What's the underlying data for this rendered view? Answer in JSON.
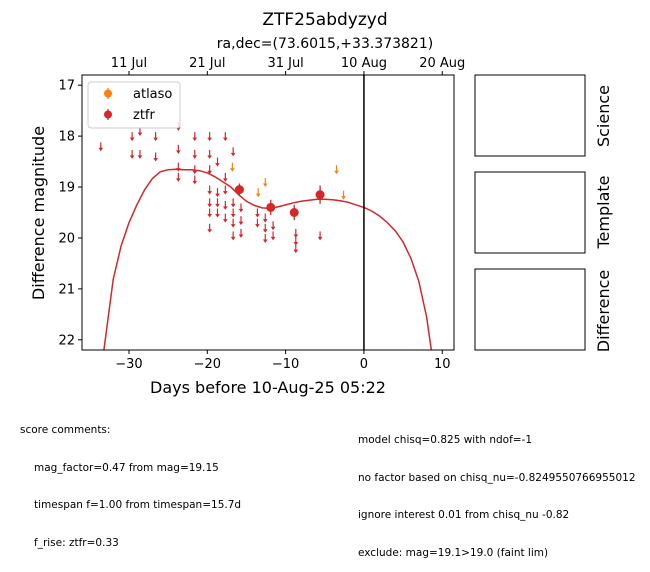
{
  "chart_data": {
    "type": "scatter",
    "title": "ZTF25abdyzyd",
    "subtitle": "ra,dec=(73.6015,+33.373821)",
    "xlabel": "Days before 10-Aug-25 05:22",
    "ylabel": "Difference magnitude",
    "xlim": [
      -36,
      11.5
    ],
    "ylim": [
      22.2,
      16.8
    ],
    "x_ticks": [
      -30,
      -20,
      -10,
      0,
      10
    ],
    "y_ticks": [
      17,
      18,
      19,
      20,
      21,
      22
    ],
    "top_axis_ticks": [
      {
        "x": -30,
        "label": "11 Jul"
      },
      {
        "x": -20,
        "label": "21 Jul"
      },
      {
        "x": -10,
        "label": "31 Jul"
      },
      {
        "x": 0,
        "label": "10 Aug"
      },
      {
        "x": 10,
        "label": "20 Aug"
      }
    ],
    "vline_x": 0,
    "grid": false,
    "legend_placement": "upper-left",
    "series": [
      {
        "name": "atlaso",
        "color": "#ff7f0e",
        "detections": [],
        "upper_limits": [
          [
            -16.8,
            18.6
          ],
          [
            -13.5,
            19.1
          ],
          [
            -12.6,
            18.9
          ],
          [
            -3.5,
            18.65
          ],
          [
            -2.6,
            19.15
          ]
        ]
      },
      {
        "name": "ztfr",
        "color": "#d62728",
        "detections": [
          {
            "x": -15.9,
            "y": 19.05,
            "err": 0.12
          },
          {
            "x": -11.9,
            "y": 19.4,
            "err": 0.15
          },
          {
            "x": -8.9,
            "y": 19.5,
            "err": 0.15
          },
          {
            "x": -5.6,
            "y": 19.15,
            "err": 0.18
          }
        ],
        "upper_limits": [
          [
            -33.6,
            18.2
          ],
          [
            -29.6,
            18.0
          ],
          [
            -29.6,
            18.35
          ],
          [
            -28.6,
            17.9
          ],
          [
            -28.6,
            18.35
          ],
          [
            -26.6,
            18.0
          ],
          [
            -26.6,
            18.4
          ],
          [
            -23.7,
            17.8
          ],
          [
            -23.7,
            18.25
          ],
          [
            -23.7,
            18.6
          ],
          [
            -23.7,
            18.8
          ],
          [
            -21.6,
            18.0
          ],
          [
            -21.6,
            18.35
          ],
          [
            -21.6,
            18.65
          ],
          [
            -21.6,
            18.85
          ],
          [
            -19.7,
            18.0
          ],
          [
            -19.7,
            18.35
          ],
          [
            -19.7,
            18.65
          ],
          [
            -19.7,
            19.05
          ],
          [
            -19.7,
            19.3
          ],
          [
            -19.7,
            19.5
          ],
          [
            -19.7,
            19.8
          ],
          [
            -18.7,
            18.5
          ],
          [
            -18.7,
            19.1
          ],
          [
            -18.7,
            19.3
          ],
          [
            -18.7,
            19.5
          ],
          [
            -17.7,
            18.0
          ],
          [
            -17.7,
            18.8
          ],
          [
            -17.7,
            19.05
          ],
          [
            -17.7,
            19.35
          ],
          [
            -17.7,
            19.6
          ],
          [
            -16.7,
            18.3
          ],
          [
            -16.7,
            19.3
          ],
          [
            -16.7,
            19.5
          ],
          [
            -16.7,
            19.7
          ],
          [
            -16.7,
            19.95
          ],
          [
            -15.7,
            19.4
          ],
          [
            -15.7,
            19.65
          ],
          [
            -15.7,
            19.9
          ],
          [
            -13.6,
            19.5
          ],
          [
            -13.6,
            19.7
          ],
          [
            -12.6,
            19.6
          ],
          [
            -12.6,
            19.8
          ],
          [
            -12.6,
            20.0
          ],
          [
            -11.6,
            19.75
          ],
          [
            -11.6,
            19.95
          ],
          [
            -8.7,
            19.9
          ],
          [
            -8.7,
            20.05
          ],
          [
            -8.7,
            20.2
          ],
          [
            -5.6,
            19.95
          ]
        ]
      }
    ],
    "model_curve": {
      "color": "#d62728",
      "points": [
        [
          -33.2,
          22.2
        ],
        [
          -32.0,
          20.8
        ],
        [
          -31.0,
          20.15
        ],
        [
          -30.0,
          19.7
        ],
        [
          -29.0,
          19.35
        ],
        [
          -28.0,
          19.05
        ],
        [
          -27.0,
          18.83
        ],
        [
          -26.0,
          18.7
        ],
        [
          -25.0,
          18.66
        ],
        [
          -24.0,
          18.65
        ],
        [
          -23.0,
          18.66
        ],
        [
          -22.0,
          18.66
        ],
        [
          -21.0,
          18.68
        ],
        [
          -20.0,
          18.72
        ],
        [
          -19.0,
          18.8
        ],
        [
          -18.0,
          18.9
        ],
        [
          -17.0,
          19.0
        ],
        [
          -16.0,
          19.15
        ],
        [
          -15.0,
          19.28
        ],
        [
          -14.0,
          19.36
        ],
        [
          -13.0,
          19.41
        ],
        [
          -12.0,
          19.42
        ],
        [
          -11.0,
          19.39
        ],
        [
          -10.0,
          19.35
        ],
        [
          -9.0,
          19.31
        ],
        [
          -8.0,
          19.28
        ],
        [
          -7.0,
          19.26
        ],
        [
          -6.0,
          19.24
        ],
        [
          -5.0,
          19.24
        ],
        [
          -4.0,
          19.25
        ],
        [
          -3.0,
          19.27
        ],
        [
          -2.0,
          19.3
        ],
        [
          -1.0,
          19.35
        ],
        [
          0.0,
          19.4
        ],
        [
          1.0,
          19.47
        ],
        [
          2.0,
          19.57
        ],
        [
          3.0,
          19.7
        ],
        [
          4.0,
          19.86
        ],
        [
          5.0,
          20.08
        ],
        [
          6.0,
          20.4
        ],
        [
          7.0,
          20.85
        ],
        [
          8.0,
          21.55
        ],
        [
          8.6,
          22.2
        ]
      ]
    }
  },
  "panels": {
    "science": "Science",
    "template": "Template",
    "difference": "Difference"
  },
  "comments": {
    "left_header": "score comments:",
    "left_lines": [
      "mag_factor=0.47 from mag=19.15",
      "timespan f=1.00 from timespan=15.7d",
      "f_rise: ztfr=0.33"
    ],
    "right_lines": [
      "model chisq=0.825 with ndof=-1",
      "no factor based on chisq_nu=-0.8249550766955012",
      "ignore interest 0.01 from chisq_nu -0.82",
      "exclude: mag=19.1>19.0 (faint lim)"
    ]
  }
}
